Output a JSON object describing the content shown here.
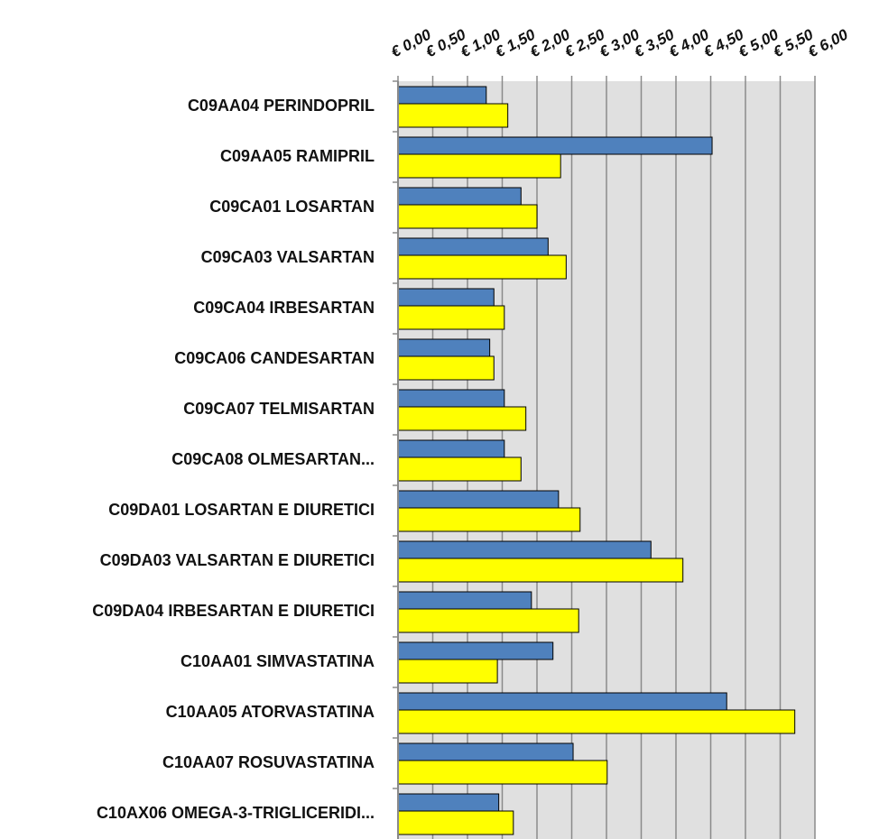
{
  "chart_data": {
    "type": "hbar",
    "categories": [
      "C09AA04 PERINDOPRIL",
      "C09AA05 RAMIPRIL",
      "C09CA01 LOSARTAN",
      "C09CA03 VALSARTAN",
      "C09CA04 IRBESARTAN",
      "C09CA06 CANDESARTAN",
      "C09CA07 TELMISARTAN",
      "C09CA08 OLMESARTAN...",
      "C09DA01 LOSARTAN E DIURETICI",
      "C09DA03 VALSARTAN E DIURETICI",
      "C09DA04 IRBESARTAN E DIURETICI",
      "C10AA01 SIMVASTATINA",
      "C10AA05 ATORVASTATINA",
      "C10AA07 ROSUVASTATINA",
      "C10AX06 OMEGA-3-TRIGLICERIDI..."
    ],
    "series": [
      {
        "color": "#4f81bd",
        "values": [
          1.27,
          4.52,
          1.77,
          2.16,
          1.38,
          1.32,
          1.53,
          1.53,
          2.31,
          3.64,
          1.92,
          2.23,
          4.73,
          2.52,
          1.45
        ]
      },
      {
        "color": "#ffff00",
        "values": [
          1.58,
          2.34,
          2.0,
          2.42,
          1.53,
          1.38,
          1.84,
          1.77,
          2.62,
          4.1,
          2.6,
          1.43,
          5.71,
          3.01,
          1.66
        ]
      }
    ],
    "xlim": [
      0,
      6
    ],
    "xticks": [
      {
        "value": 0,
        "label": "€ 0,00"
      },
      {
        "value": 0.5,
        "label": "€ 0,50"
      },
      {
        "value": 1,
        "label": "€ 1,00"
      },
      {
        "value": 1.5,
        "label": "€ 1,50"
      },
      {
        "value": 2,
        "label": "€ 2,00"
      },
      {
        "value": 2.5,
        "label": "€ 2,50"
      },
      {
        "value": 3,
        "label": "€ 3,00"
      },
      {
        "value": 3.5,
        "label": "€ 3,50"
      },
      {
        "value": 4,
        "label": "€ 4,00"
      },
      {
        "value": 4.5,
        "label": "€ 4,50"
      },
      {
        "value": 5,
        "label": "€ 5,00"
      },
      {
        "value": 5.5,
        "label": "€ 5,50"
      },
      {
        "value": 6,
        "label": "€ 6,00"
      }
    ],
    "grid": true,
    "plot_background": "#e0e0e0"
  }
}
